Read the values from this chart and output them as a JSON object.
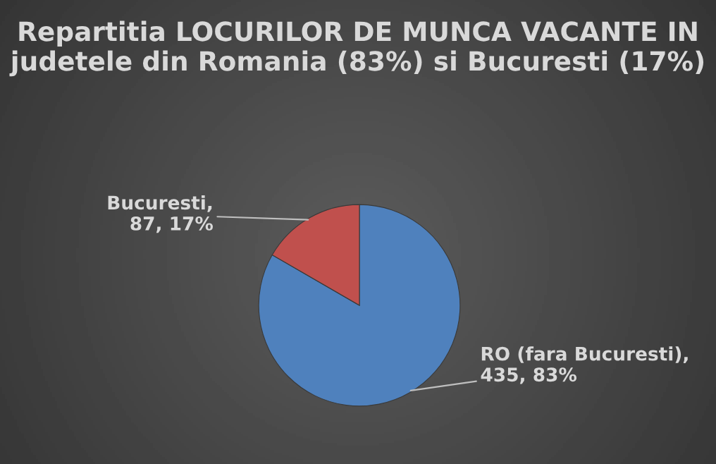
{
  "chart_data": {
    "type": "pie",
    "title": "Repartitia LOCURILOR DE MUNCA VACANTE IN judetele din Romania (83%) si Bucuresti (17%)",
    "categories": [
      "RO (fara Bucuresti)",
      "Bucuresti"
    ],
    "values": [
      435,
      87
    ],
    "colors": [
      "#4f81bd",
      "#c0504d"
    ],
    "value_labels": [
      ", 435, 83%",
      ", 87, 17%"
    ],
    "legend": false
  }
}
